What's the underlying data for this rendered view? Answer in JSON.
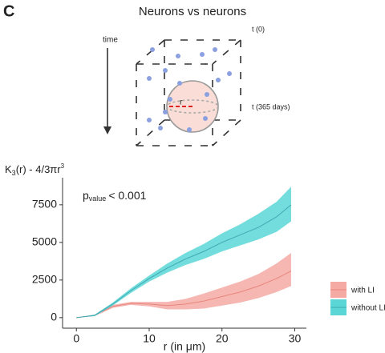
{
  "panel_label": "C",
  "diagram": {
    "title": "Neurons vs neurons",
    "time_label": "time",
    "start_label": "t (0)",
    "end_label": "t (365 days)",
    "radius_label": "r"
  },
  "chart_data": {
    "type": "line",
    "ylabel": {
      "main": "K",
      "sub": "3",
      "rest": "(r) - 4/3πr",
      "sup": "3"
    },
    "xlabel": "r (in μm)",
    "annotation": {
      "main": "p",
      "sub": "value",
      "rest": "< 0.001"
    },
    "x": [
      0,
      2.5,
      5,
      7.5,
      10,
      12.5,
      15,
      17.5,
      20,
      22.5,
      25,
      27.5,
      29.5
    ],
    "series": [
      {
        "name": "with LI",
        "color": "#e8867d",
        "band_color": "#f5aaa4",
        "values": [
          0,
          150,
          750,
          950,
          900,
          800,
          900,
          1100,
          1400,
          1700,
          2100,
          2600,
          3100
        ],
        "lower": [
          0,
          100,
          650,
          850,
          750,
          550,
          550,
          600,
          800,
          1000,
          1300,
          1700,
          2100
        ],
        "upper": [
          0,
          200,
          850,
          1050,
          1050,
          1050,
          1250,
          1600,
          2000,
          2400,
          2900,
          3600,
          4300
        ]
      },
      {
        "name": "without LI",
        "color": "#3fa9b3",
        "band_color": "#5ad6d6",
        "values": [
          0,
          150,
          900,
          1800,
          2600,
          3300,
          3900,
          4400,
          5000,
          5500,
          6000,
          6700,
          7500
        ],
        "lower": [
          0,
          100,
          800,
          1650,
          2400,
          3000,
          3500,
          3900,
          4400,
          4800,
          5200,
          5700,
          6400
        ],
        "upper": [
          0,
          200,
          1000,
          1950,
          2800,
          3600,
          4300,
          4900,
          5600,
          6200,
          6900,
          7700,
          8700
        ]
      }
    ],
    "xlim": [
      -1.9,
      31.6
    ],
    "ylim": [
      -700,
      9300
    ],
    "xticks": [
      0,
      10,
      20,
      30
    ],
    "yticks": [
      0,
      2500,
      5000,
      7500
    ],
    "grid": false,
    "legend": "right"
  }
}
